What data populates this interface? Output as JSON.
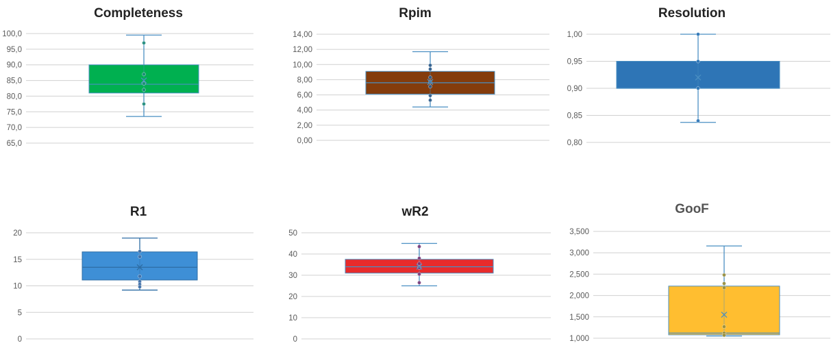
{
  "chart_data": [
    {
      "type": "box",
      "title": "Completeness",
      "ylim": [
        65,
        100
      ],
      "ticks": [
        65,
        70,
        75,
        80,
        85,
        90,
        95,
        100
      ],
      "tick_labels": [
        "65,0",
        "70,0",
        "75,0",
        "80,0",
        "85,0",
        "90,0",
        "95,0",
        "100,0"
      ],
      "box": {
        "whisker_low": 73.5,
        "q1": 81,
        "median": 83.8,
        "mean": 85,
        "q3": 90,
        "whisker_high": 99.5
      },
      "points": [
        97,
        87,
        84,
        82,
        77.5
      ],
      "colors": {
        "fill": "#00B050",
        "line": "#4A8FC2",
        "point": "#1F8C7A"
      }
    },
    {
      "type": "box",
      "title": "Rpim",
      "ylim": [
        0,
        14
      ],
      "ticks": [
        0,
        2,
        4,
        6,
        8,
        10,
        12,
        14
      ],
      "tick_labels": [
        "0,00",
        "2,00",
        "4,00",
        "6,00",
        "8,00",
        "10,00",
        "12,00",
        "14,00"
      ],
      "box": {
        "whisker_low": 4.4,
        "q1": 6.1,
        "median": 7.6,
        "mean": 7.7,
        "q3": 9.1,
        "whisker_high": 11.7
      },
      "points": [
        9.9,
        9.4,
        8.3,
        7.7,
        7.1,
        5.9,
        5.3
      ],
      "colors": {
        "fill": "#843C0C",
        "line": "#4A8FC2",
        "point": "#2E5C8A"
      }
    },
    {
      "type": "box",
      "title": "Resolution",
      "ylim": [
        0.8,
        1.0
      ],
      "ticks": [
        0.8,
        0.85,
        0.9,
        0.95,
        1.0
      ],
      "tick_labels": [
        "0,80",
        "0,85",
        "0,90",
        "0,95",
        "1,00"
      ],
      "box": {
        "whisker_low": 0.837,
        "q1": 0.9,
        "median": 0.9,
        "mean": 0.92,
        "q3": 0.95,
        "whisker_high": 1.0
      },
      "points": [
        1.0,
        0.95,
        0.9,
        0.84
      ],
      "colors": {
        "fill": "#2E75B6",
        "line": "#4A8FC2",
        "point": "#2E75B6"
      }
    },
    {
      "type": "box",
      "title": "R1",
      "ylim": [
        0,
        20
      ],
      "ticks": [
        0,
        5,
        10,
        15,
        20
      ],
      "tick_labels": [
        "0",
        "5",
        "10",
        "15",
        "20"
      ],
      "box": {
        "whisker_low": 9.2,
        "q1": 11.1,
        "median": 13.5,
        "mean": 13.5,
        "q3": 16.4,
        "whisker_high": 19.0
      },
      "points": [
        16.5,
        15.5,
        11.8,
        10.8,
        10.3,
        9.8
      ],
      "colors": {
        "fill": "#3E8FD6",
        "line": "#2E6DA4",
        "point": "#3F6FA8"
      }
    },
    {
      "type": "box",
      "title": "wR2",
      "ylim": [
        0,
        50
      ],
      "ticks": [
        0,
        10,
        20,
        30,
        40,
        50
      ],
      "tick_labels": [
        "0",
        "10",
        "20",
        "30",
        "40",
        "50"
      ],
      "box": {
        "whisker_low": 25,
        "q1": 31,
        "median": 34,
        "mean": 34,
        "q3": 37.5,
        "whisker_high": 45
      },
      "points": [
        43.5,
        38,
        35.5,
        33.5,
        30.5,
        26.5
      ],
      "colors": {
        "fill": "#E82B2B",
        "line": "#4A8FC2",
        "point": "#7A3A7A"
      }
    },
    {
      "type": "box",
      "title": "GooF",
      "ylim": [
        1.0,
        3.5
      ],
      "ticks": [
        1.0,
        1.5,
        2.0,
        2.5,
        3.0,
        3.5
      ],
      "tick_labels": [
        "1,000",
        "1,500",
        "2,000",
        "2,500",
        "3,000",
        "3,500"
      ],
      "box": {
        "whisker_low": 1.05,
        "q1": 1.08,
        "median": 1.12,
        "mean": 1.55,
        "q3": 2.22,
        "whisker_high": 3.16
      },
      "points": [
        2.48,
        2.28,
        2.18,
        1.27,
        1.12,
        1.07
      ],
      "colors": {
        "fill": "#FFBE30",
        "line": "#4A8FC2",
        "point": "#9A8F3A"
      }
    }
  ],
  "colors": {
    "gridline": "#D0D0D0",
    "axis_text": "#595959"
  }
}
